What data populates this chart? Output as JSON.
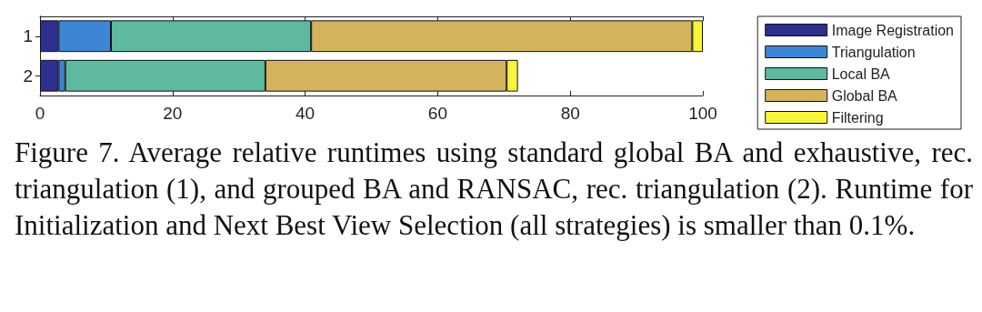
{
  "chart_data": {
    "type": "bar",
    "orientation": "horizontal",
    "stacked": true,
    "categories": [
      "1",
      "2"
    ],
    "series": [
      {
        "name": "Image Registration",
        "color": "#2e2f8f",
        "values": [
          2.8,
          2.8
        ]
      },
      {
        "name": "Triangulation",
        "color": "#3c86d4",
        "values": [
          7.9,
          1.0
        ]
      },
      {
        "name": "Local BA",
        "color": "#5fb8a0",
        "values": [
          30.2,
          30.2
        ]
      },
      {
        "name": "Global BA",
        "color": "#d4b35f",
        "values": [
          57.5,
          36.4
        ]
      },
      {
        "name": "Filtering",
        "color": "#f7f53a",
        "values": [
          1.6,
          1.7
        ]
      }
    ],
    "xlim": [
      0,
      100
    ],
    "xticks": [
      0,
      20,
      40,
      60,
      80,
      100
    ],
    "grid": false,
    "legend": "right",
    "annotations": [
      "Figure 7. Average relative runtimes using standard global BA and exhaustive, rec. triangulation (1), and grouped BA and RANSAC, rec. triangulation (2).  Runtime for Initialization and Next Best View Selection (all strategies) is smaller than 0.1%."
    ]
  }
}
